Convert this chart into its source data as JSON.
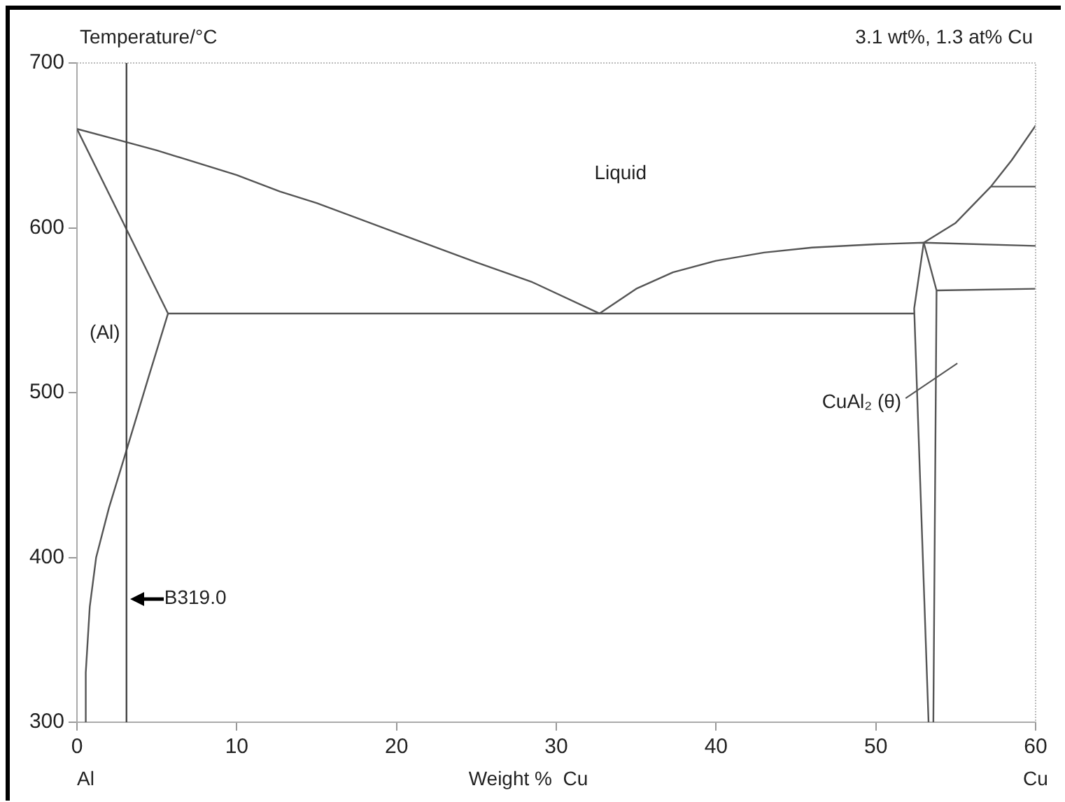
{
  "chart_data": {
    "type": "line",
    "xlabel": "Weight %  Cu",
    "ylabel": "Temperature/°C",
    "xlim": [
      0,
      60
    ],
    "ylim": [
      300,
      700
    ],
    "xticks": [
      0,
      10,
      20,
      30,
      40,
      50,
      60
    ],
    "yticks": [
      300,
      400,
      500,
      600,
      700
    ],
    "grid": false,
    "legend": false,
    "ref_lines": [
      {
        "axis": "x",
        "value": 3.1,
        "color": "#444444"
      }
    ],
    "annotations": [
      "3.1 wt%, 1.3 at% Cu",
      "Al",
      "Cu",
      "Liquid",
      "(Al)",
      "CuAl₂ (θ)",
      {
        "text": "B319.0",
        "x": 3.1,
        "y": 375
      }
    ],
    "series": [
      {
        "color": "#555555",
        "x": [
          0,
          3.1,
          5,
          10,
          12.7,
          15,
          20,
          25,
          28.5,
          32.7
        ],
        "values": [
          660,
          652,
          647,
          632,
          622,
          615,
          597,
          579,
          567,
          548
        ]
      },
      {
        "color": "#555555",
        "x": [
          32.7,
          35,
          37.3,
          40,
          43,
          46,
          50,
          53,
          60
        ],
        "values": [
          548,
          563,
          573,
          580,
          585,
          588,
          590,
          591,
          589
        ]
      },
      {
        "color": "#555555",
        "x": [
          53,
          55,
          57.2,
          58.5,
          60
        ],
        "values": [
          591,
          603,
          625,
          641,
          662
        ]
      },
      {
        "color": "#555555",
        "x": [
          57.2,
          60
        ],
        "values": [
          625,
          625
        ]
      },
      {
        "color": "#555555",
        "x": [
          53.8,
          60
        ],
        "values": [
          562,
          563
        ]
      },
      {
        "color": "#555555",
        "x": [
          53,
          52.4,
          53.3
        ],
        "values": [
          591,
          551,
          300
        ]
      },
      {
        "color": "#555555",
        "x": [
          53,
          53.8,
          53.6
        ],
        "values": [
          591,
          562,
          300
        ]
      },
      {
        "color": "#555555",
        "x": [
          5.7,
          52.4
        ],
        "values": [
          548,
          548
        ]
      },
      {
        "color": "#555555",
        "x": [
          0,
          5.7
        ],
        "values": [
          660,
          548
        ]
      },
      {
        "color": "#555555",
        "x": [
          5.7,
          4.5,
          3.1,
          2,
          1.2,
          0.8,
          0.55,
          0.55
        ],
        "values": [
          548,
          510,
          465,
          430,
          400,
          370,
          330,
          300
        ]
      }
    ]
  }
}
